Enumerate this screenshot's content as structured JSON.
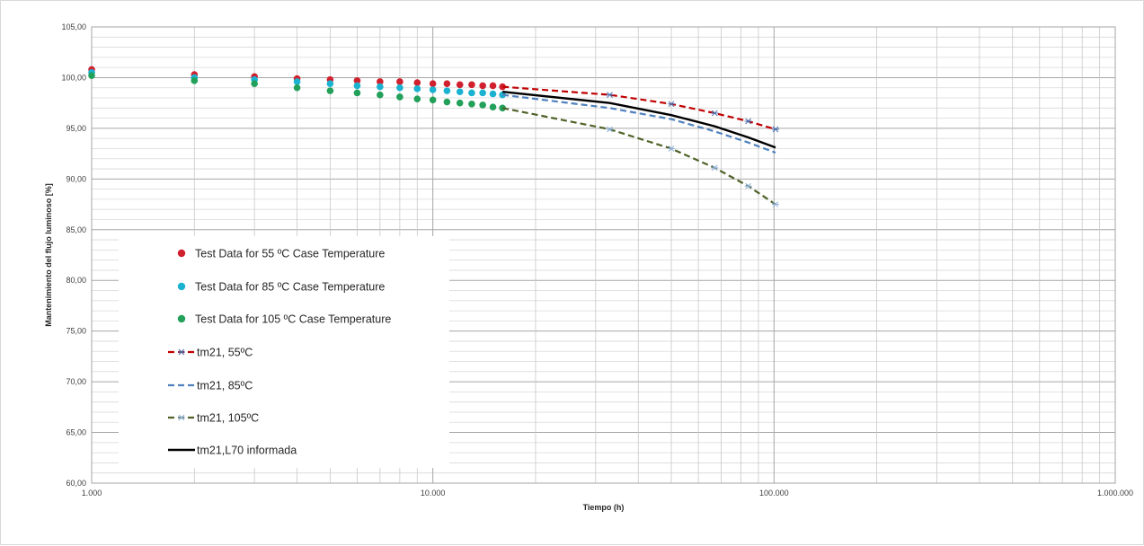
{
  "chart_data": {
    "type": "scatter",
    "title": "",
    "xlabel": "Tiempo (h)",
    "ylabel": "Mantenimiento del flujo luminoso [%]",
    "x_scale": "log",
    "xlim": [
      1000,
      1000000
    ],
    "ylim": [
      60,
      105
    ],
    "x_ticks": [
      1000,
      10000,
      100000,
      1000000
    ],
    "x_tick_labels": [
      "1.000",
      "10.000",
      "100.000",
      "1.000.000"
    ],
    "y_ticks": [
      60,
      65,
      70,
      75,
      80,
      85,
      90,
      95,
      100,
      105
    ],
    "y_tick_labels": [
      "60,00",
      "65,00",
      "70,00",
      "75,00",
      "80,00",
      "85,00",
      "90,00",
      "95,00",
      "100,00",
      "105,00"
    ],
    "grid": "major and minor",
    "legend_position": "lower-left inside plot",
    "series": [
      {
        "name": "Test Data for 55 ºC Case Temperature",
        "kind": "points",
        "color": "#d0202e",
        "x": [
          1000,
          2000,
          3000,
          4000,
          5000,
          6000,
          7000,
          8000,
          9000,
          10000,
          11000,
          12000,
          13000,
          14000,
          15000,
          16000
        ],
        "y": [
          100.8,
          100.3,
          100.1,
          99.9,
          99.8,
          99.7,
          99.6,
          99.6,
          99.5,
          99.4,
          99.4,
          99.3,
          99.3,
          99.2,
          99.2,
          99.1
        ]
      },
      {
        "name": "Test Data for 85 ºC Case Temperature",
        "kind": "points",
        "color": "#1ab2d0",
        "x": [
          1000,
          2000,
          3000,
          4000,
          5000,
          6000,
          7000,
          8000,
          9000,
          10000,
          11000,
          12000,
          13000,
          14000,
          15000,
          16000
        ],
        "y": [
          100.5,
          100.0,
          99.8,
          99.6,
          99.4,
          99.2,
          99.1,
          99.0,
          98.9,
          98.8,
          98.7,
          98.6,
          98.5,
          98.5,
          98.4,
          98.3
        ]
      },
      {
        "name": "Test Data for 105 ºC Case Temperature",
        "kind": "points",
        "color": "#23a05a",
        "x": [
          1000,
          2000,
          3000,
          4000,
          5000,
          6000,
          7000,
          8000,
          9000,
          10000,
          11000,
          12000,
          13000,
          14000,
          15000,
          16000
        ],
        "y": [
          100.2,
          99.7,
          99.4,
          99.0,
          98.7,
          98.5,
          98.3,
          98.1,
          97.9,
          97.8,
          97.6,
          97.5,
          97.4,
          97.3,
          97.1,
          97.0
        ]
      },
      {
        "name": "tm21, 55ºC",
        "kind": "dashed-line",
        "color": "#c00000",
        "marker_color": "#4a6fb0",
        "x": [
          16000,
          33000,
          50000,
          67000,
          84000,
          101000
        ],
        "y": [
          99.1,
          98.3,
          97.4,
          96.5,
          95.7,
          94.9
        ]
      },
      {
        "name": "tm21, 85ºC",
        "kind": "dashed-line",
        "color": "#4f81bd",
        "x": [
          16000,
          33000,
          50000,
          67000,
          84000,
          101000
        ],
        "y": [
          98.3,
          97.0,
          95.9,
          94.7,
          93.6,
          92.6
        ]
      },
      {
        "name": "tm21, 105ºC",
        "kind": "dashed-line",
        "color": "#4f6228",
        "marker_color": "#8fb0d8",
        "x": [
          16000,
          33000,
          50000,
          67000,
          84000,
          101000
        ],
        "y": [
          97.0,
          94.9,
          93.0,
          91.1,
          89.3,
          87.5
        ]
      },
      {
        "name": "tm21,L70 informada",
        "kind": "solid-line",
        "color": "#000000",
        "x": [
          16000,
          33000,
          50000,
          67000,
          84000,
          101000
        ],
        "y": [
          98.6,
          97.5,
          96.3,
          95.2,
          94.1,
          93.1
        ]
      }
    ]
  }
}
